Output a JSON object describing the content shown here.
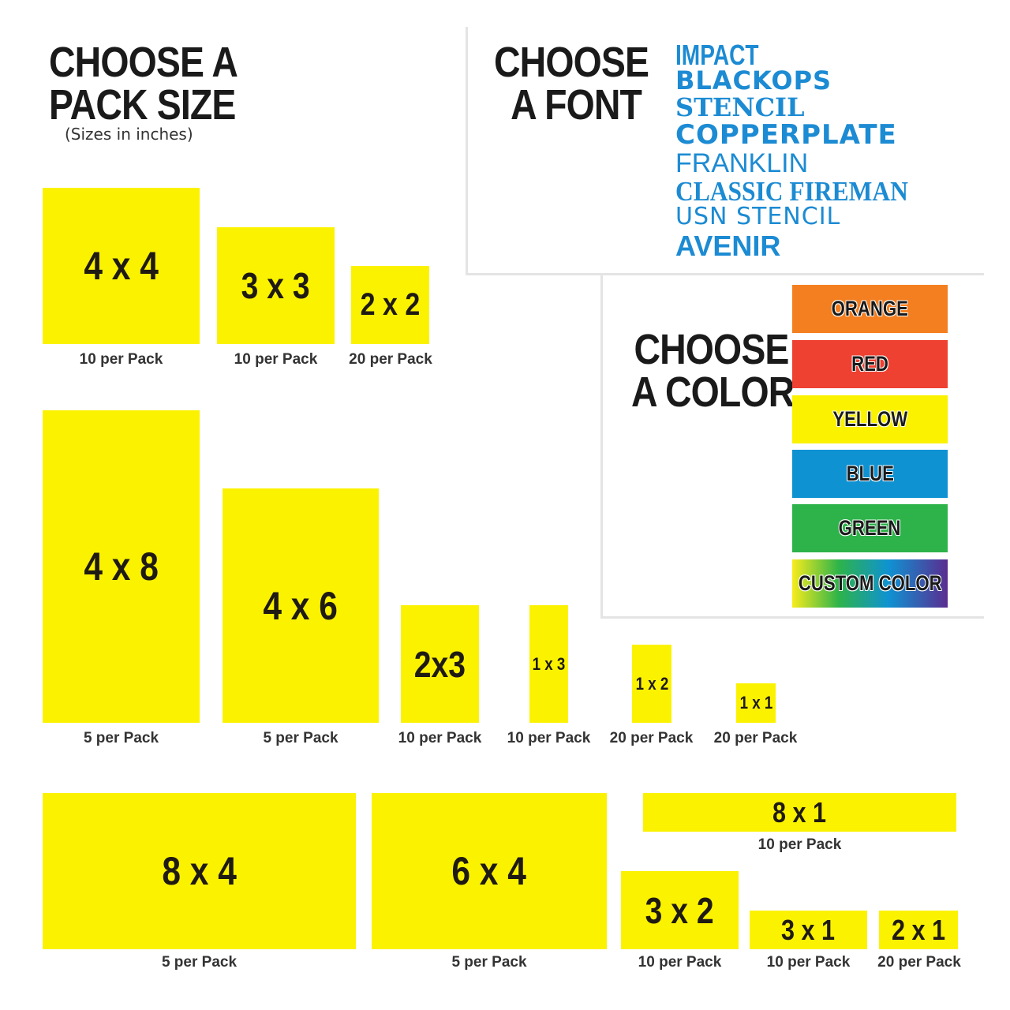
{
  "pack": {
    "heading_line1": "CHOOSE A",
    "heading_line2": "PACK SIZE",
    "subtitle": "(Sizes in inches)",
    "tiles": [
      {
        "size": "4 x 4",
        "qty": "10 per Pack"
      },
      {
        "size": "3 x 3",
        "qty": "10 per Pack"
      },
      {
        "size": "2 x 2",
        "qty": "20 per Pack"
      },
      {
        "size": "4 x 8",
        "qty": "5 per Pack"
      },
      {
        "size": "4 x 6",
        "qty": "5 per Pack"
      },
      {
        "size": "2x3",
        "qty": "10 per Pack"
      },
      {
        "size": "1 x 3",
        "qty": "10 per Pack"
      },
      {
        "size": "1 x 2",
        "qty": "20 per Pack"
      },
      {
        "size": "1 x 1",
        "qty": "20 per Pack"
      },
      {
        "size": "8 x 4",
        "qty": "5 per Pack"
      },
      {
        "size": "6 x 4",
        "qty": "5 per Pack"
      },
      {
        "size": "8 x 1",
        "qty": "10 per Pack"
      },
      {
        "size": "3 x 2",
        "qty": "10 per Pack"
      },
      {
        "size": "3 x 1",
        "qty": "10 per Pack"
      },
      {
        "size": "2 x 1",
        "qty": "20 per Pack"
      }
    ],
    "tile_color": "#fbf200"
  },
  "font": {
    "heading_line1": "CHOOSE",
    "heading_line2": "A FONT",
    "options": [
      "IMPACT",
      "BLACKOPS",
      "STENCIL",
      "COPPERPLATE",
      "FRANKLIN",
      "CLASSIC FIREMAN",
      "USN STENCIL",
      "AVENIR"
    ],
    "option_color": "#1c8bd3"
  },
  "color": {
    "heading_line1": "CHOOSE",
    "heading_line2": "A COLOR",
    "options": [
      {
        "label": "ORANGE",
        "hex": "#f47f20"
      },
      {
        "label": "RED",
        "hex": "#ee4132"
      },
      {
        "label": "YELLOW",
        "hex": "#fbf200"
      },
      {
        "label": "BLUE",
        "hex": "#0f92d2"
      },
      {
        "label": "GREEN",
        "hex": "#2db34a"
      },
      {
        "label": "CUSTOM COLOR",
        "hex": "gradient"
      }
    ]
  }
}
